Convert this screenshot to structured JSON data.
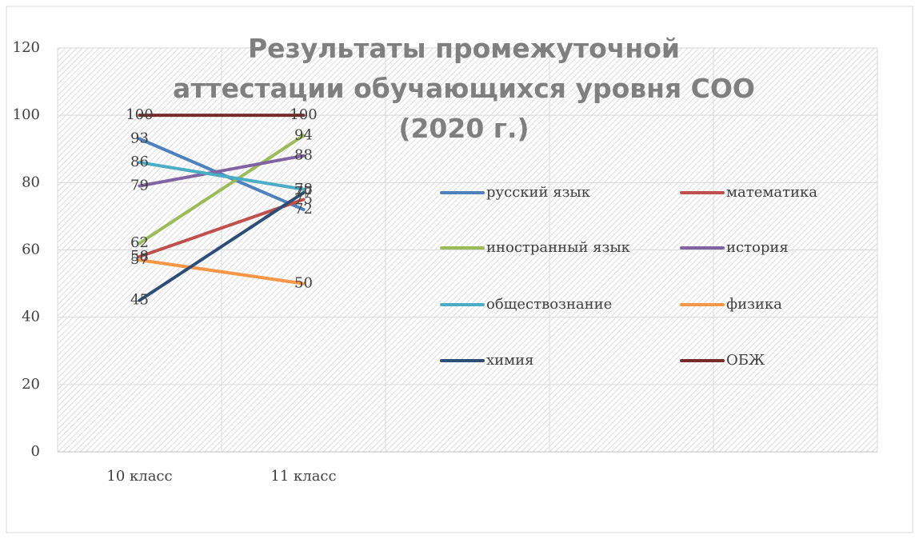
{
  "chart_data": {
    "type": "line",
    "title": "Результаты промежуточной аттестации обучающихся уровня СОО (2020 г.)",
    "categories": [
      "10 класс",
      "11 класс",
      null,
      null,
      null
    ],
    "series": [
      {
        "name": "русский язык",
        "color": "#4f81bd",
        "values": [
          93,
          72,
          null,
          null,
          null
        ]
      },
      {
        "name": "математика",
        "color": "#c0504d",
        "values": [
          58,
          75,
          null,
          null,
          null
        ]
      },
      {
        "name": "иностранный язык",
        "color": "#9bbb59",
        "values": [
          62,
          94,
          null,
          null,
          null
        ]
      },
      {
        "name": "история",
        "color": "#8064a2",
        "values": [
          79,
          88,
          null,
          null,
          null
        ]
      },
      {
        "name": "обществознание",
        "color": "#4bacc6",
        "values": [
          86,
          78,
          null,
          null,
          null
        ]
      },
      {
        "name": "физика",
        "color": "#f79646",
        "values": [
          57,
          50,
          null,
          null,
          null
        ]
      },
      {
        "name": "химия",
        "color": "#2c4d75",
        "values": [
          45,
          77,
          null,
          null,
          null
        ]
      },
      {
        "name": "ОБЖ",
        "color": "#772c2a",
        "values": [
          100,
          100,
          null,
          null,
          null
        ]
      }
    ],
    "ylim": [
      0,
      120
    ],
    "yticks": [
      0,
      20,
      40,
      60,
      80,
      100,
      120
    ],
    "grid": true,
    "data_labels": true,
    "legend": "right"
  }
}
